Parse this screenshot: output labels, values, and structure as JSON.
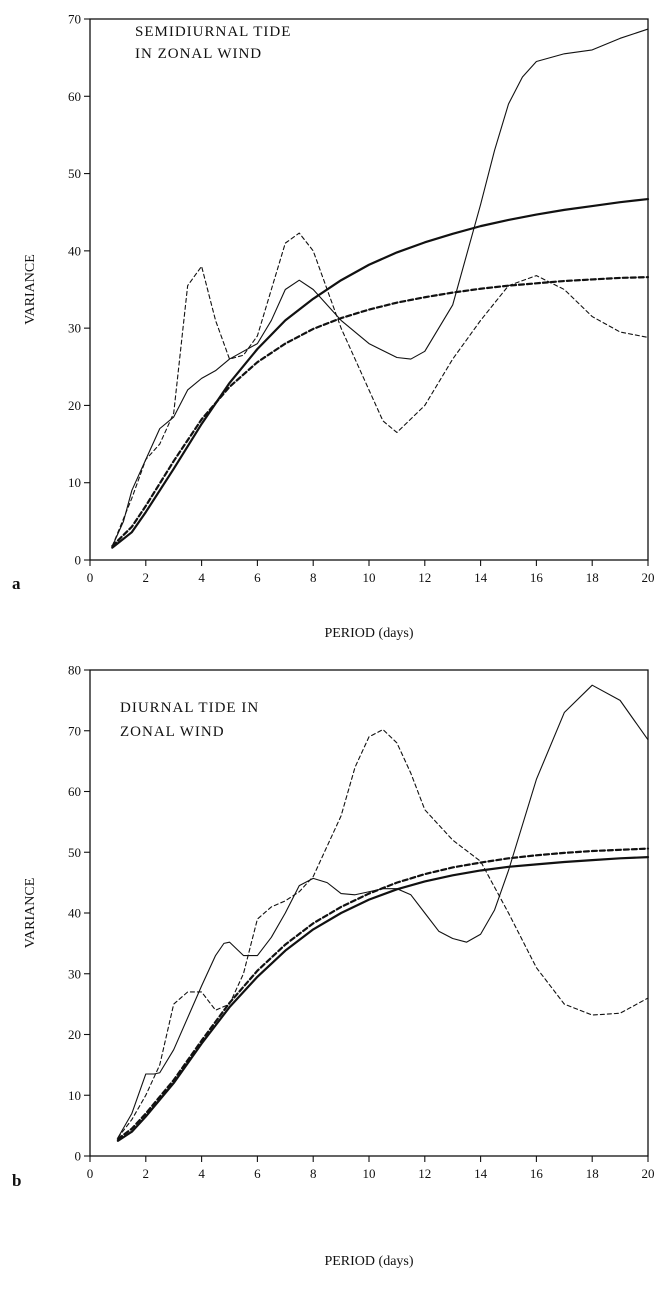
{
  "chart_data": [
    {
      "type": "line",
      "panel_letter": "a",
      "title_lines": [
        "SEMIDIURNAL TIDE",
        "IN ZONAL WIND"
      ],
      "xlabel": "PERIOD (days)",
      "ylabel": "VARIANCE",
      "xlim": [
        0,
        20
      ],
      "ylim": [
        0,
        70
      ],
      "x_ticks": [
        0,
        2,
        4,
        6,
        8,
        10,
        12,
        14,
        16,
        18,
        20
      ],
      "y_ticks": [
        0,
        10,
        20,
        30,
        40,
        50,
        60,
        70
      ],
      "grid": false,
      "legend": "none",
      "series": [
        {
          "style": "solid-thin",
          "points": [
            [
              0.8,
              1.8
            ],
            [
              1.2,
              5
            ],
            [
              1.5,
              9
            ],
            [
              2,
              13
            ],
            [
              2.5,
              17
            ],
            [
              3,
              18.5
            ],
            [
              3.5,
              22
            ],
            [
              4,
              23.5
            ],
            [
              4.5,
              24.5
            ],
            [
              5,
              26
            ],
            [
              6,
              28
            ],
            [
              6.5,
              31
            ],
            [
              7,
              35
            ],
            [
              7.5,
              36.2
            ],
            [
              8,
              35
            ],
            [
              9,
              31
            ],
            [
              10,
              28
            ],
            [
              11,
              26.2
            ],
            [
              11.5,
              26
            ],
            [
              12,
              27
            ],
            [
              13,
              33
            ],
            [
              14,
              46
            ],
            [
              14.5,
              53
            ],
            [
              15,
              59
            ],
            [
              15.5,
              62.5
            ],
            [
              16,
              64.5
            ],
            [
              17,
              65.5
            ],
            [
              18,
              66
            ],
            [
              19,
              67.5
            ],
            [
              20,
              68.7
            ]
          ]
        },
        {
          "style": "dashed-thin",
          "points": [
            [
              0.8,
              1.8
            ],
            [
              1.5,
              8
            ],
            [
              2,
              13
            ],
            [
              2.5,
              15
            ],
            [
              3,
              19
            ],
            [
              3.5,
              35.5
            ],
            [
              4,
              38
            ],
            [
              4.5,
              31
            ],
            [
              5,
              26
            ],
            [
              5.5,
              26.5
            ],
            [
              6,
              29
            ],
            [
              6.5,
              35
            ],
            [
              7,
              41
            ],
            [
              7.5,
              42.3
            ],
            [
              8,
              40
            ],
            [
              9,
              30
            ],
            [
              10,
              22
            ],
            [
              10.5,
              18
            ],
            [
              11,
              16.5
            ],
            [
              12,
              20
            ],
            [
              13,
              26
            ],
            [
              14,
              31
            ],
            [
              15,
              35.5
            ],
            [
              16,
              36.8
            ],
            [
              17,
              35
            ],
            [
              18,
              31.5
            ],
            [
              19,
              29.5
            ],
            [
              20,
              28.8
            ]
          ]
        },
        {
          "style": "solid-thick",
          "points": [
            [
              0.8,
              1.6
            ],
            [
              1.5,
              3.6
            ],
            [
              2,
              6.2
            ],
            [
              3,
              11.8
            ],
            [
              4,
              17.6
            ],
            [
              5,
              22.9
            ],
            [
              6,
              27.3
            ],
            [
              7,
              31
            ],
            [
              8,
              33.8
            ],
            [
              9,
              36.2
            ],
            [
              10,
              38.2
            ],
            [
              11,
              39.8
            ],
            [
              12,
              41.1
            ],
            [
              13,
              42.2
            ],
            [
              14,
              43.2
            ],
            [
              15,
              44
            ],
            [
              16,
              44.7
            ],
            [
              17,
              45.3
            ],
            [
              18,
              45.8
            ],
            [
              19,
              46.3
            ],
            [
              20,
              46.7
            ]
          ]
        },
        {
          "style": "dashed-thick",
          "points": [
            [
              0.8,
              1.8
            ],
            [
              1.5,
              4.3
            ],
            [
              2,
              7
            ],
            [
              3,
              12.8
            ],
            [
              4,
              18.2
            ],
            [
              5,
              22.4
            ],
            [
              6,
              25.6
            ],
            [
              7,
              28
            ],
            [
              8,
              29.9
            ],
            [
              9,
              31.3
            ],
            [
              10,
              32.4
            ],
            [
              11,
              33.3
            ],
            [
              12,
              34
            ],
            [
              13,
              34.6
            ],
            [
              14,
              35.1
            ],
            [
              15,
              35.5
            ],
            [
              16,
              35.8
            ],
            [
              17,
              36.1
            ],
            [
              18,
              36.3
            ],
            [
              19,
              36.5
            ],
            [
              20,
              36.6
            ]
          ]
        }
      ]
    },
    {
      "type": "line",
      "panel_letter": "b",
      "title_lines": [
        "DIURNAL TIDE IN",
        "ZONAL WIND"
      ],
      "xlabel": "PERIOD (days)",
      "ylabel": "VARIANCE",
      "xlim": [
        0,
        20
      ],
      "ylim": [
        0,
        80
      ],
      "x_ticks": [
        0,
        2,
        4,
        6,
        8,
        10,
        12,
        14,
        16,
        18,
        20
      ],
      "y_ticks": [
        0,
        10,
        20,
        30,
        40,
        50,
        60,
        70,
        80
      ],
      "grid": false,
      "legend": "none",
      "series": [
        {
          "style": "solid-thin",
          "points": [
            [
              1,
              3
            ],
            [
              1.5,
              7
            ],
            [
              2,
              13.5
            ],
            [
              2.3,
              13.5
            ],
            [
              2.5,
              13.7
            ],
            [
              3,
              17.5
            ],
            [
              4,
              28
            ],
            [
              4.5,
              33
            ],
            [
              4.8,
              35
            ],
            [
              5,
              35.2
            ],
            [
              5.5,
              33
            ],
            [
              6,
              33
            ],
            [
              6.5,
              36
            ],
            [
              7,
              40
            ],
            [
              7.5,
              44.5
            ],
            [
              8,
              45.7
            ],
            [
              8.5,
              45
            ],
            [
              9,
              43.2
            ],
            [
              9.5,
              43
            ],
            [
              10,
              43.5
            ],
            [
              10.5,
              44
            ],
            [
              11,
              44
            ],
            [
              11.5,
              43
            ],
            [
              12,
              40
            ],
            [
              12.5,
              37
            ],
            [
              13,
              35.8
            ],
            [
              13.5,
              35.2
            ],
            [
              14,
              36.5
            ],
            [
              14.5,
              40.5
            ],
            [
              15,
              47
            ],
            [
              16,
              62
            ],
            [
              17,
              73
            ],
            [
              18,
              77.5
            ],
            [
              19,
              75
            ],
            [
              20,
              68.5
            ]
          ]
        },
        {
          "style": "dashed-thin",
          "points": [
            [
              1,
              3
            ],
            [
              1.5,
              6
            ],
            [
              2,
              10
            ],
            [
              2.5,
              15
            ],
            [
              3,
              25
            ],
            [
              3.5,
              27
            ],
            [
              4,
              27
            ],
            [
              4.5,
              24
            ],
            [
              5,
              25
            ],
            [
              5.5,
              30
            ],
            [
              6,
              39
            ],
            [
              6.5,
              41
            ],
            [
              7,
              42
            ],
            [
              7.5,
              43.5
            ],
            [
              8,
              46
            ],
            [
              9,
              56
            ],
            [
              9.5,
              64
            ],
            [
              10,
              69
            ],
            [
              10.5,
              70.2
            ],
            [
              11,
              68
            ],
            [
              11.5,
              63
            ],
            [
              12,
              57
            ],
            [
              13,
              52
            ],
            [
              14,
              48.5
            ],
            [
              15,
              40
            ],
            [
              16,
              31
            ],
            [
              17,
              25
            ],
            [
              18,
              23.2
            ],
            [
              19,
              23.5
            ],
            [
              20,
              26
            ]
          ]
        },
        {
          "style": "solid-thick",
          "points": [
            [
              1,
              2.5
            ],
            [
              1.5,
              4
            ],
            [
              2,
              6.5
            ],
            [
              3,
              12
            ],
            [
              4,
              18.5
            ],
            [
              5,
              24.5
            ],
            [
              6,
              29.5
            ],
            [
              7,
              33.8
            ],
            [
              8,
              37.3
            ],
            [
              9,
              40
            ],
            [
              10,
              42.2
            ],
            [
              11,
              43.9
            ],
            [
              12,
              45.2
            ],
            [
              13,
              46.2
            ],
            [
              14,
              47
            ],
            [
              15,
              47.6
            ],
            [
              16,
              48
            ],
            [
              17,
              48.4
            ],
            [
              18,
              48.7
            ],
            [
              19,
              49
            ],
            [
              20,
              49.2
            ]
          ]
        },
        {
          "style": "dashed-thick",
          "points": [
            [
              1,
              2.8
            ],
            [
              1.5,
              4.5
            ],
            [
              2,
              7
            ],
            [
              3,
              12.5
            ],
            [
              4,
              19
            ],
            [
              5,
              25.2
            ],
            [
              6,
              30.5
            ],
            [
              7,
              34.8
            ],
            [
              8,
              38.3
            ],
            [
              9,
              41
            ],
            [
              10,
              43.2
            ],
            [
              11,
              45
            ],
            [
              12,
              46.4
            ],
            [
              13,
              47.5
            ],
            [
              14,
              48.3
            ],
            [
              15,
              49
            ],
            [
              16,
              49.5
            ],
            [
              17,
              49.9
            ],
            [
              18,
              50.2
            ],
            [
              19,
              50.4
            ],
            [
              20,
              50.6
            ]
          ]
        }
      ]
    }
  ]
}
